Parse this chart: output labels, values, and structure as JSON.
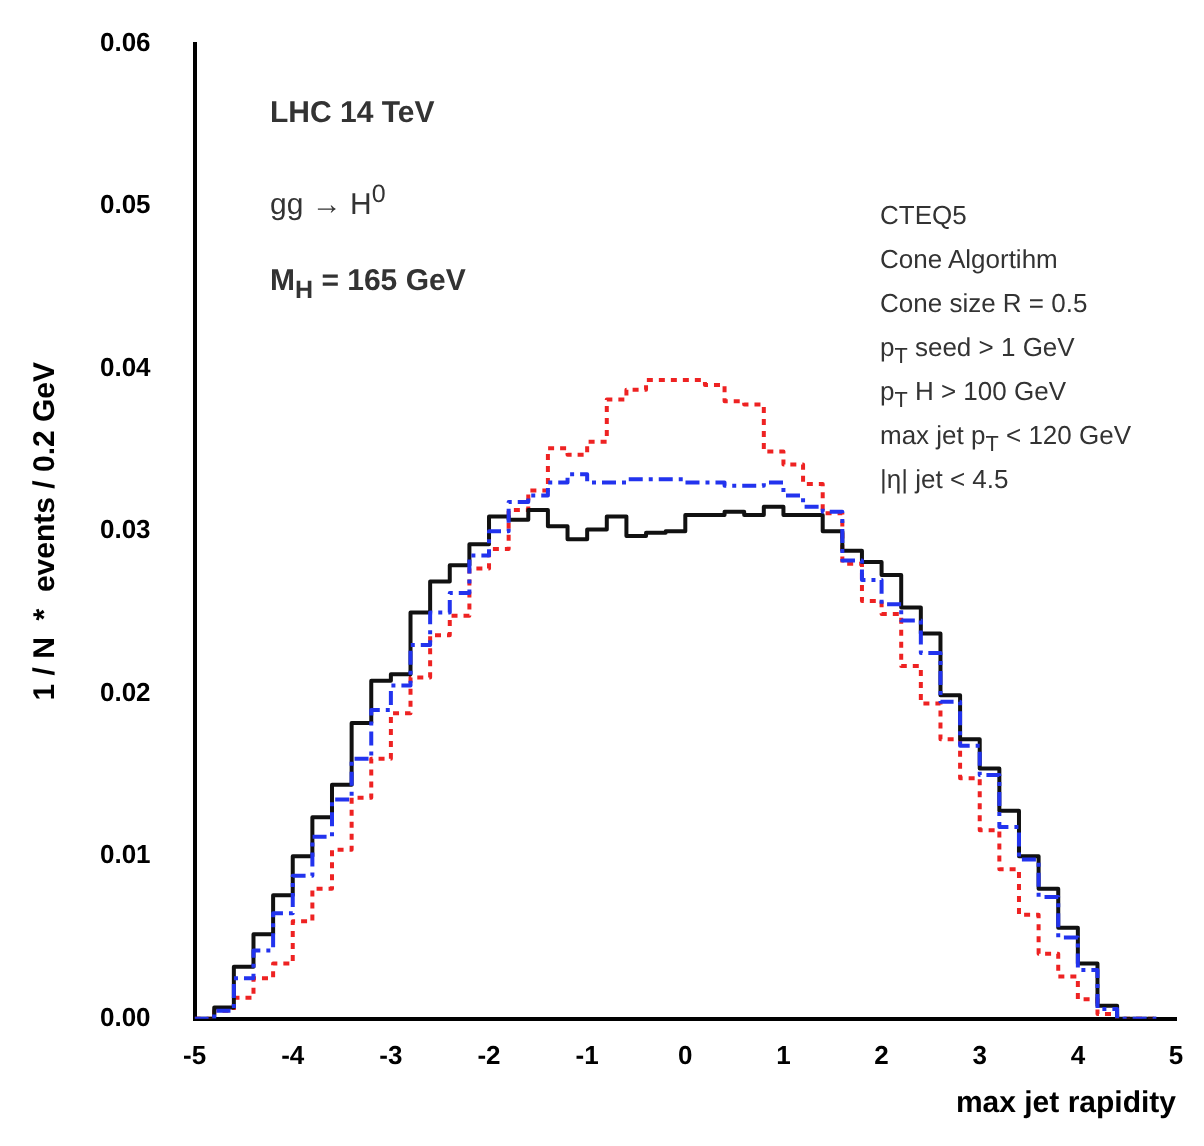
{
  "chart_data": {
    "type": "step",
    "xlabel": "max jet rapidity",
    "ylabel": "1 / N  *  events / 0.2 GeV",
    "x": [
      -5,
      -4.8,
      -4.6,
      -4.4,
      -4.2,
      -4,
      -3.8,
      -3.6,
      -3.4,
      -3.2,
      -3,
      -2.8,
      -2.6,
      -2.4,
      -2.2,
      -2,
      -1.8,
      -1.6,
      -1.4,
      -1.2,
      -1,
      -0.8,
      -0.6,
      -0.4,
      -0.2,
      0,
      0.2,
      0.4,
      0.6,
      0.8,
      1,
      1.2,
      1.4,
      1.6,
      1.8,
      2,
      2.2,
      2.4,
      2.6,
      2.8,
      3,
      3.2,
      3.4,
      3.6,
      3.8,
      4,
      4.2,
      4.4,
      4.6,
      4.8
    ],
    "series": [
      {
        "color": "#2233ee",
        "line_style": "dashed",
        "values": [
          0,
          0,
          0.0005,
          0.0025,
          0.0042,
          0.0065,
          0.0088,
          0.0112,
          0.0135,
          0.016,
          0.019,
          0.0205,
          0.023,
          0.025,
          0.0262,
          0.0285,
          0.03,
          0.0318,
          0.0322,
          0.033,
          0.0335,
          0.033,
          0.033,
          0.0332,
          0.0332,
          0.0332,
          0.033,
          0.033,
          0.0328,
          0.0328,
          0.033,
          0.0322,
          0.0315,
          0.0312,
          0.0282,
          0.027,
          0.0255,
          0.0245,
          0.0225,
          0.0195,
          0.0168,
          0.015,
          0.0118,
          0.0098,
          0.0075,
          0.005,
          0.003,
          0.0006,
          0,
          0
        ]
      },
      {
        "color": "#111111",
        "line_style": "solid",
        "values": [
          0,
          0,
          0.0007,
          0.0032,
          0.0052,
          0.0076,
          0.01,
          0.0124,
          0.0144,
          0.0182,
          0.0208,
          0.0212,
          0.025,
          0.0269,
          0.0279,
          0.0292,
          0.0309,
          0.0307,
          0.0313,
          0.0303,
          0.0295,
          0.0301,
          0.0309,
          0.0297,
          0.0299,
          0.03,
          0.031,
          0.031,
          0.0312,
          0.031,
          0.0315,
          0.031,
          0.031,
          0.03,
          0.0288,
          0.0281,
          0.0273,
          0.0253,
          0.0237,
          0.0199,
          0.0172,
          0.0154,
          0.0128,
          0.01,
          0.008,
          0.0056,
          0.0034,
          0.0008,
          0,
          0
        ]
      },
      {
        "color": "#ee2222",
        "line_style": "dotted",
        "values": [
          0,
          0,
          0.0005,
          0.0013,
          0.0025,
          0.0034,
          0.006,
          0.008,
          0.0104,
          0.0136,
          0.016,
          0.0188,
          0.021,
          0.0236,
          0.0248,
          0.0277,
          0.0289,
          0.0313,
          0.0325,
          0.0351,
          0.0347,
          0.0355,
          0.0381,
          0.0387,
          0.0393,
          0.0393,
          0.0393,
          0.039,
          0.038,
          0.0378,
          0.0349,
          0.0341,
          0.0329,
          0.0311,
          0.028,
          0.0257,
          0.0249,
          0.0217,
          0.0194,
          0.0172,
          0.0148,
          0.0116,
          0.0092,
          0.0064,
          0.004,
          0.0026,
          0.0012,
          0.0003,
          0,
          0
        ]
      }
    ],
    "xlim": [
      -5,
      5
    ],
    "xticks": [
      -5,
      -4,
      -3,
      -2,
      -1,
      0,
      1,
      2,
      3,
      4,
      5
    ],
    "ylim": [
      0,
      0.06
    ],
    "yticks": [
      {
        "value": 0,
        "label": "0.00"
      },
      0.01,
      0.02,
      0.03,
      0.04,
      0.05,
      0.06
    ],
    "grid": false,
    "marker": "none",
    "annotations": [
      "LHC 14 TeV",
      "gg → H$^{0}$",
      "M$_{H}$ = 165 GeV",
      "CTEQ5",
      "Cone Algortihm",
      "Cone size R = 0.5",
      "p$_{T}$ seed > 1 GeV",
      "p$_{T}$ H > 100 GeV",
      "max jet p$_{T}$ < 120 GeV",
      "|η| jet < 4.5"
    ]
  }
}
